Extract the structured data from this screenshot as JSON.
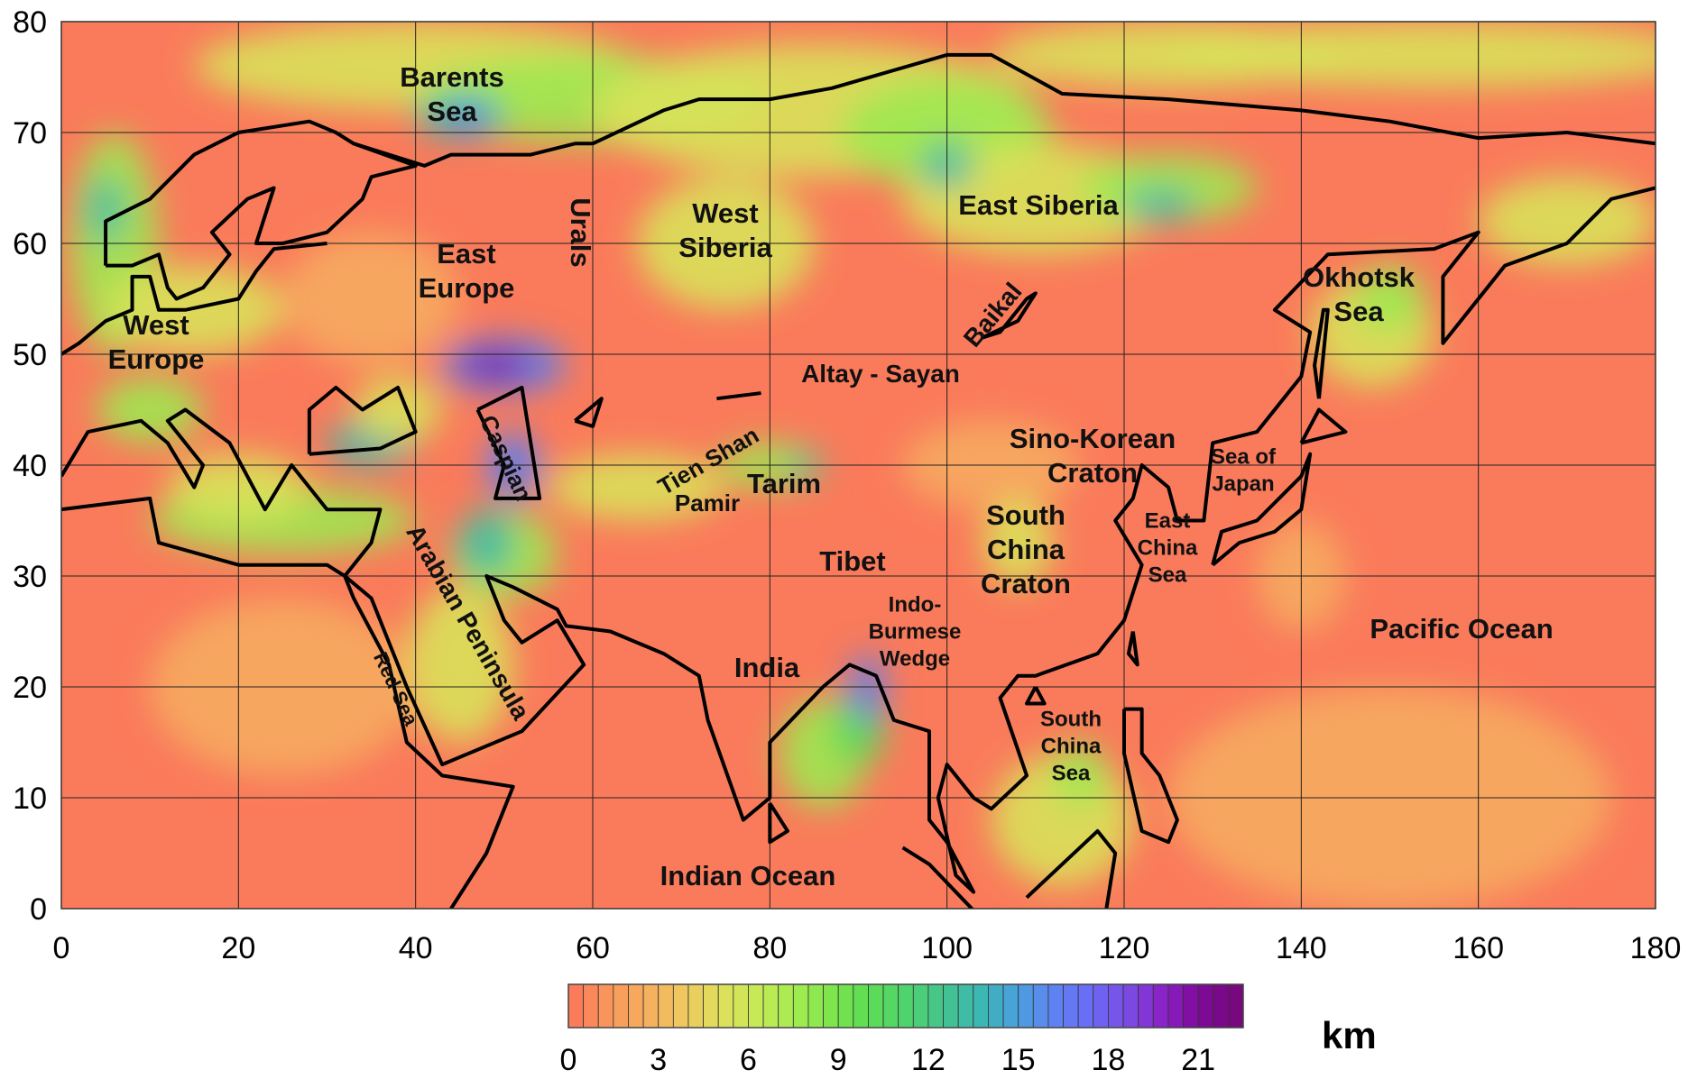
{
  "map": {
    "extent": {
      "lon": [
        0,
        180
      ],
      "lat": [
        0,
        80
      ]
    },
    "x_ticks": [
      "0",
      "20",
      "40",
      "60",
      "80",
      "100",
      "120",
      "140",
      "160",
      "180"
    ],
    "y_ticks": [
      "0",
      "10",
      "20",
      "30",
      "40",
      "50",
      "60",
      "70",
      "80"
    ],
    "grid": true,
    "base_color": "#fa7b5b",
    "regions": [
      {
        "lines": [
          "Barents",
          "Sea"
        ]
      },
      {
        "lines": [
          "East",
          "Europe"
        ]
      },
      {
        "lines": [
          "Urals"
        ]
      },
      {
        "lines": [
          "West",
          "Siberia"
        ]
      },
      {
        "lines": [
          "East Siberia"
        ]
      },
      {
        "lines": [
          "West",
          "Europe"
        ]
      },
      {
        "lines": [
          "Baikal"
        ]
      },
      {
        "lines": [
          "Altay - Sayan"
        ]
      },
      {
        "lines": [
          "Caspian"
        ]
      },
      {
        "lines": [
          "Tien Shan"
        ]
      },
      {
        "lines": [
          "Pamir"
        ]
      },
      {
        "lines": [
          "Tarim"
        ]
      },
      {
        "lines": [
          "Arabian Peninsula"
        ]
      },
      {
        "lines": [
          "Red Sea"
        ]
      },
      {
        "lines": [
          "Tibet"
        ]
      },
      {
        "lines": [
          "India"
        ]
      },
      {
        "lines": [
          "Indo-",
          "Burmese",
          "Wedge"
        ]
      },
      {
        "lines": [
          "Sino-Korean",
          "Craton"
        ]
      },
      {
        "lines": [
          "South",
          "China",
          "Craton"
        ]
      },
      {
        "lines": [
          "Sea of",
          "Japan"
        ]
      },
      {
        "lines": [
          "East",
          "China",
          "Sea"
        ]
      },
      {
        "lines": [
          "South",
          "China",
          "Sea"
        ]
      },
      {
        "lines": [
          "Okhotsk",
          "Sea"
        ]
      },
      {
        "lines": [
          "Pacific Ocean"
        ]
      },
      {
        "lines": [
          "Indian Ocean"
        ]
      }
    ]
  },
  "colorbar": {
    "unit": "km",
    "min": 0,
    "max": 22.5,
    "step": 0.5,
    "ticks": [
      "0",
      "3",
      "6",
      "9",
      "12",
      "15",
      "18",
      "21"
    ],
    "colors": [
      "#fb7b5b",
      "#f99a5c",
      "#f6b05e",
      "#eec95f",
      "#dde05c",
      "#c6ea56",
      "#a2ec50",
      "#7ce64c",
      "#5cdc55",
      "#4fd46d",
      "#44c48d",
      "#3ab8b2",
      "#4aa0dc",
      "#5e84f2",
      "#6a6cf6",
      "#7a4ee6",
      "#8a22c8",
      "#7e0a9a",
      "#78087e"
    ]
  }
}
